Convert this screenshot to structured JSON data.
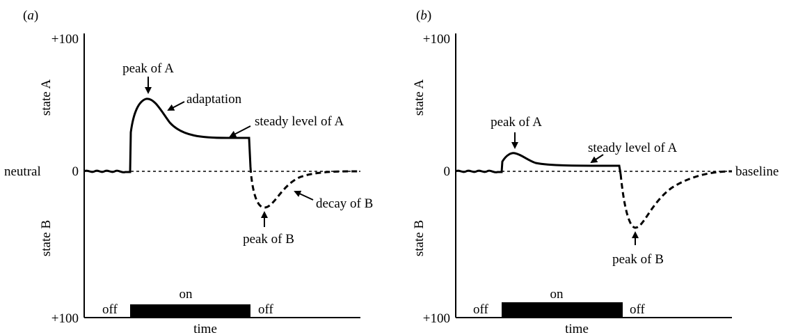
{
  "colors": {
    "ink": "#000000",
    "background": "#ffffff"
  },
  "panels": [
    {
      "id": "a",
      "panel_label_prefix": "(",
      "panel_label_letter": "a",
      "panel_label_suffix": ")",
      "axis": {
        "top_value": "+100",
        "zero_value": "0",
        "bottom_value": "+100",
        "upper_label": "state A",
        "lower_label": "state B",
        "x_label": "time",
        "left_zero_label": "neutral",
        "right_zero_label": ""
      },
      "stimulus": {
        "before": "off",
        "during": "on",
        "after": "off"
      },
      "annotations": {
        "peak_a": "peak of A",
        "adaptation": "adaptation",
        "steady_a": "steady level of A",
        "decay_b": "decay of B",
        "peak_b": "peak of B"
      }
    },
    {
      "id": "b",
      "panel_label_prefix": "(",
      "panel_label_letter": "b",
      "panel_label_suffix": ")",
      "axis": {
        "top_value": "+100",
        "zero_value": "0",
        "bottom_value": "+100",
        "upper_label": "state A",
        "lower_label": "state B",
        "x_label": "time",
        "left_zero_label": "",
        "right_zero_label": "baseline"
      },
      "stimulus": {
        "before": "off",
        "during": "on",
        "after": "off"
      },
      "annotations": {
        "peak_a": "peak of A",
        "adaptation": "",
        "steady_a": "steady level of A",
        "decay_b": "",
        "peak_b": "peak of B"
      }
    }
  ]
}
